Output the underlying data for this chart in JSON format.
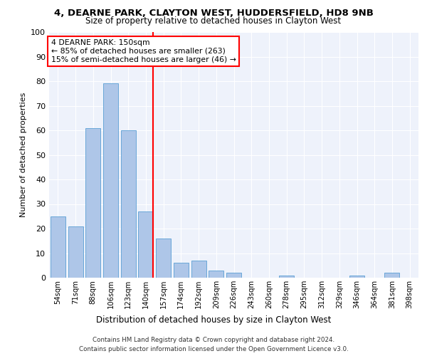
{
  "title1": "4, DEARNE PARK, CLAYTON WEST, HUDDERSFIELD, HD8 9NB",
  "title2": "Size of property relative to detached houses in Clayton West",
  "xlabel": "Distribution of detached houses by size in Clayton West",
  "ylabel": "Number of detached properties",
  "categories": [
    "54sqm",
    "71sqm",
    "88sqm",
    "106sqm",
    "123sqm",
    "140sqm",
    "157sqm",
    "174sqm",
    "192sqm",
    "209sqm",
    "226sqm",
    "243sqm",
    "260sqm",
    "278sqm",
    "295sqm",
    "312sqm",
    "329sqm",
    "346sqm",
    "364sqm",
    "381sqm",
    "398sqm"
  ],
  "values": [
    25,
    21,
    61,
    79,
    60,
    27,
    16,
    6,
    7,
    3,
    2,
    0,
    0,
    1,
    0,
    0,
    0,
    1,
    0,
    2,
    0
  ],
  "bar_color": "#aec6e8",
  "bar_edge_color": "#5a9fd4",
  "vline_index": 5,
  "annotation_text": "4 DEARNE PARK: 150sqm\n← 85% of detached houses are smaller (263)\n15% of semi-detached houses are larger (46) →",
  "vline_color": "red",
  "ylim": [
    0,
    100
  ],
  "yticks": [
    0,
    10,
    20,
    30,
    40,
    50,
    60,
    70,
    80,
    90,
    100
  ],
  "background_color": "#eef2fb",
  "footer1": "Contains HM Land Registry data © Crown copyright and database right 2024.",
  "footer2": "Contains public sector information licensed under the Open Government Licence v3.0."
}
